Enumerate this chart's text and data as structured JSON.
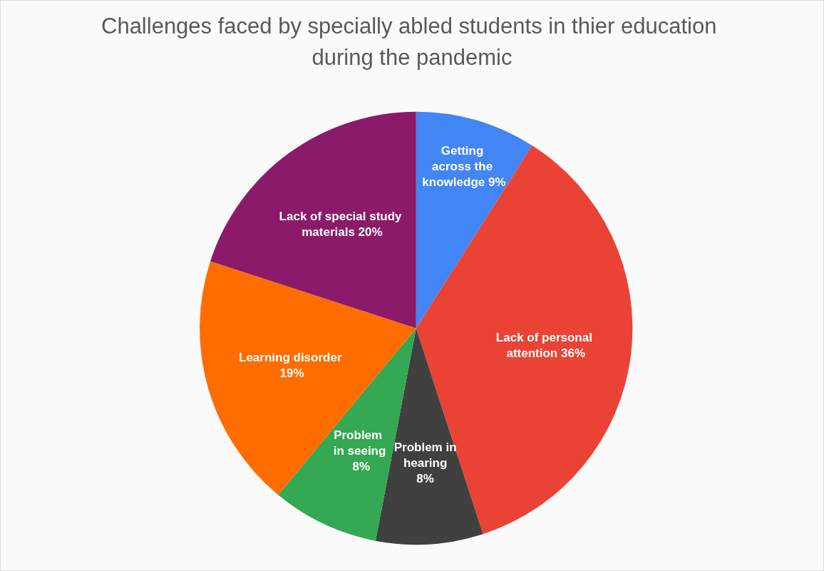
{
  "chart_data": {
    "type": "pie",
    "title": "Challenges faced by specially abled students in thier education during the pandemic",
    "categories": [
      "Getting across the knowledge",
      "Lack of personal attention",
      "Problem in hearing",
      "Problem in seeing",
      "Learning disorder",
      "Lack of special study materials"
    ],
    "values": [
      9,
      36,
      8,
      8,
      19,
      20
    ],
    "colors": [
      "#4285f4",
      "#ea4335",
      "#404040",
      "#34a853",
      "#ff6d01",
      "#8b1a6b"
    ],
    "value_labels": [
      "9%",
      "36%",
      "8%",
      "8%",
      "19%",
      "20%"
    ],
    "legend": false
  }
}
